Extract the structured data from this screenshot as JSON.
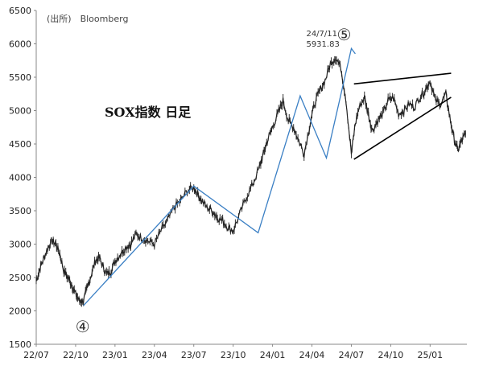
{
  "chart_data": {
    "type": "line",
    "title": "SOX指数 日足",
    "source": "(出所)　Bloomberg",
    "ylim": [
      1500,
      6500
    ],
    "y_ticks": [
      1500,
      2000,
      2500,
      3000,
      3500,
      4000,
      4500,
      5000,
      5500,
      6000,
      6500
    ],
    "x_tick_labels": [
      "22/07",
      "22/10",
      "23/01",
      "23/04",
      "23/07",
      "23/10",
      "24/01",
      "24/04",
      "24/07",
      "24/10",
      "25/01"
    ],
    "xlim": [
      0,
      32.8
    ],
    "series": [
      {
        "x": [
          0,
          0.3,
          0.6,
          0.9,
          1.2,
          1.5,
          1.8,
          2.1,
          2.4,
          2.7,
          3.0,
          3.3,
          3.6,
          3.9,
          4.2,
          4.5,
          4.8,
          5.1,
          5.4,
          5.7,
          6.0,
          6.4,
          6.8,
          7.2,
          7.6,
          8.0,
          8.5,
          9.0,
          9.5,
          10.0,
          10.5,
          11.0,
          11.5,
          12.0,
          12.3,
          12.6,
          13.0,
          13.4,
          13.8,
          14.2,
          14.6,
          15.0,
          15.5,
          16.0,
          16.5,
          17.0,
          17.3,
          17.6,
          18.0,
          18.4,
          18.8,
          19.2,
          19.6,
          20.0,
          20.4,
          20.8,
          21.2,
          21.6,
          22.0,
          22.4,
          22.8,
          23.2,
          23.6,
          24.0,
          24.3,
          24.6,
          25.0,
          25.3,
          25.6,
          26.0,
          26.4,
          26.8,
          27.2,
          27.6,
          28.0,
          28.4,
          28.8,
          29.2,
          29.6,
          30.0,
          30.4,
          30.8,
          31.2,
          31.5,
          31.8,
          32.1,
          32.4,
          32.7
        ],
        "y": [
          2450,
          2650,
          2800,
          2950,
          3050,
          3000,
          2850,
          2600,
          2500,
          2400,
          2250,
          2150,
          2150,
          2350,
          2550,
          2750,
          2800,
          2650,
          2550,
          2600,
          2750,
          2850,
          2950,
          3000,
          3150,
          3100,
          3050,
          3000,
          3200,
          3350,
          3550,
          3650,
          3800,
          3850,
          3750,
          3650,
          3550,
          3500,
          3400,
          3350,
          3250,
          3200,
          3450,
          3700,
          3900,
          4150,
          4350,
          4550,
          4750,
          4950,
          5150,
          4850,
          4750,
          4550,
          4350,
          4750,
          5100,
          5300,
          5450,
          5700,
          5800,
          5650,
          5150,
          4350,
          4800,
          5050,
          5200,
          4950,
          4700,
          4850,
          4950,
          5150,
          5200,
          4950,
          5000,
          5100,
          5050,
          5200,
          5300,
          5450,
          5150,
          5100,
          5250,
          4900,
          4600,
          4400,
          4550,
          4650
        ]
      }
    ],
    "wave_line": {
      "x": [
        3.6,
        12.0,
        16.9,
        20.1,
        22.1,
        24.0,
        24.3
      ],
      "y": [
        2080,
        3870,
        3170,
        5220,
        4290,
        5930,
        5850
      ]
    },
    "triangle_upper": {
      "x": [
        24.2,
        31.6
      ],
      "y": [
        5400,
        5560
      ]
    },
    "triangle_lower": {
      "x": [
        24.2,
        31.6
      ],
      "y": [
        4270,
        5200
      ]
    },
    "annotations": [
      {
        "text": "24/7/11",
        "x": 24.0,
        "y": 5931.83
      },
      {
        "text": "5931.83",
        "x": 24.0,
        "y": 5931.83
      }
    ],
    "wave_labels": [
      {
        "text": "⑤",
        "x": 24.0,
        "y": 5931.83
      },
      {
        "text": "④",
        "x": 3.6,
        "y": 2080
      }
    ]
  }
}
